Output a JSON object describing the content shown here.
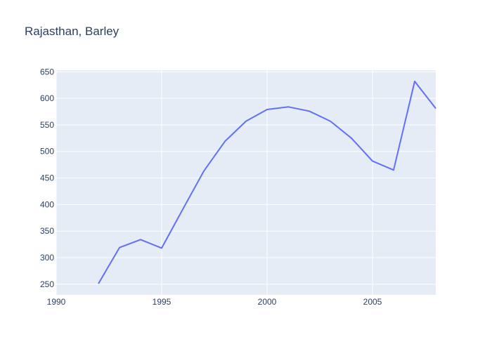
{
  "chart_data": {
    "type": "line",
    "title": "Rajasthan, Barley",
    "xlabel": "",
    "ylabel": "",
    "x": [
      1992,
      1993,
      1994,
      1995,
      1996,
      1997,
      1998,
      1999,
      2000,
      2001,
      2002,
      2003,
      2004,
      2005,
      2006,
      2007,
      2008
    ],
    "series": [
      {
        "values": [
          251,
          319,
          334,
          318,
          391,
          463,
          519,
          557,
          579,
          584,
          576,
          557,
          525,
          482,
          465,
          632,
          581
        ],
        "color": "#636efa"
      }
    ],
    "xlim": [
      1990,
      2008
    ],
    "ylim": [
      230,
      653
    ],
    "xticks": [
      1990,
      1995,
      2000,
      2005
    ],
    "yticks": [
      250,
      300,
      350,
      400,
      450,
      500,
      550,
      600,
      650
    ],
    "grid": true,
    "plot_bg": "#e5ecf6",
    "grid_color": "#ffffff"
  }
}
